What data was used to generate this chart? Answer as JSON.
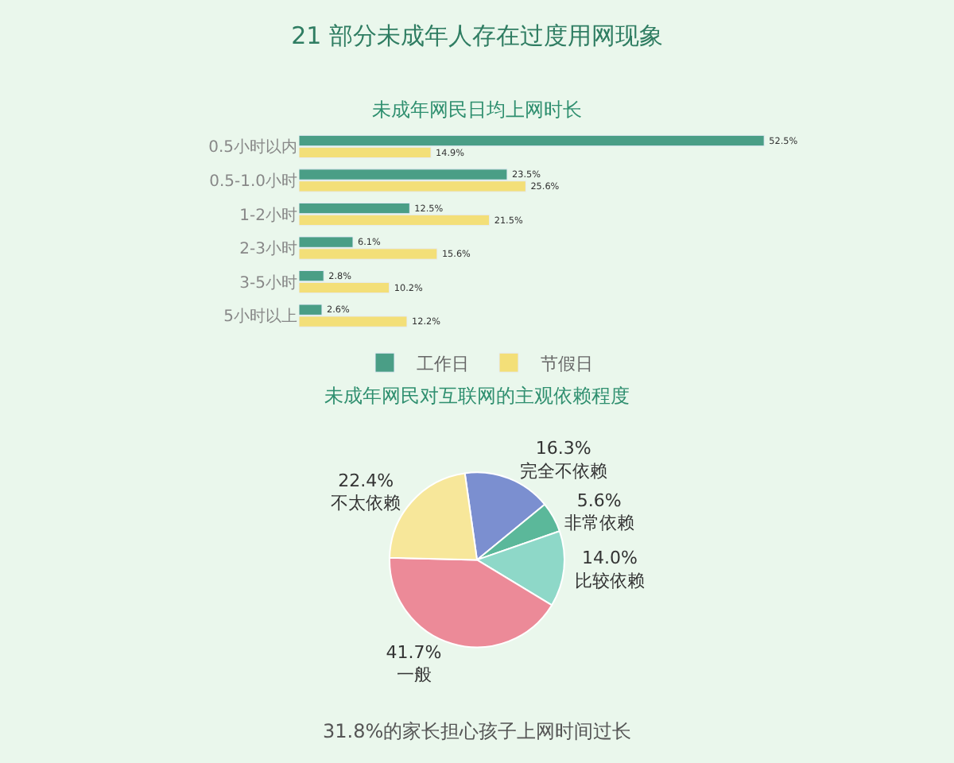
{
  "chart_data": [
    {
      "type": "bar",
      "orientation": "horizontal",
      "title": "21 部分未成年人存在过度用网现象",
      "subtitle": "未成年网民日均上网时长",
      "categories": [
        "0.5小时以内",
        "0.5-1.0小时",
        "1-2小时",
        "2-3小时",
        "3-5小时",
        "5小时以上"
      ],
      "series": [
        {
          "name": "工作日",
          "color": "#4a9e86",
          "values": [
            52.5,
            23.5,
            12.5,
            6.1,
            2.8,
            2.6
          ],
          "value_labels": [
            "52.5%",
            "23.5%",
            "12.5%",
            "6.1%",
            "2.8%",
            "2.6%"
          ]
        },
        {
          "name": "节假日",
          "color": "#f3df78",
          "values": [
            14.9,
            25.6,
            21.5,
            15.6,
            10.2,
            12.2
          ],
          "value_labels": [
            "14.9%",
            "25.6%",
            "21.5%",
            "15.6%",
            "10.2%",
            "12.2%"
          ]
        }
      ],
      "tick_labels": "y",
      "legend": "bottom"
    },
    {
      "type": "pie",
      "title": "未成年网民对互联网的主观依赖程度",
      "categories": [
        "完全不依赖",
        "非常依赖",
        "比较依赖",
        "一般",
        "不太依赖"
      ],
      "values": [
        16.3,
        5.6,
        14.0,
        41.7,
        22.4
      ],
      "value_labels": [
        "16.3%",
        "5.6%",
        "14.0%",
        "41.7%",
        "22.4%"
      ],
      "colors": [
        "#7b8fd0",
        "#5bb89a",
        "#8ed8c8",
        "#ec8a98",
        "#f7e79a"
      ],
      "annotations": [
        "31.8%的家长担心孩子上网时间过长"
      ]
    }
  ]
}
